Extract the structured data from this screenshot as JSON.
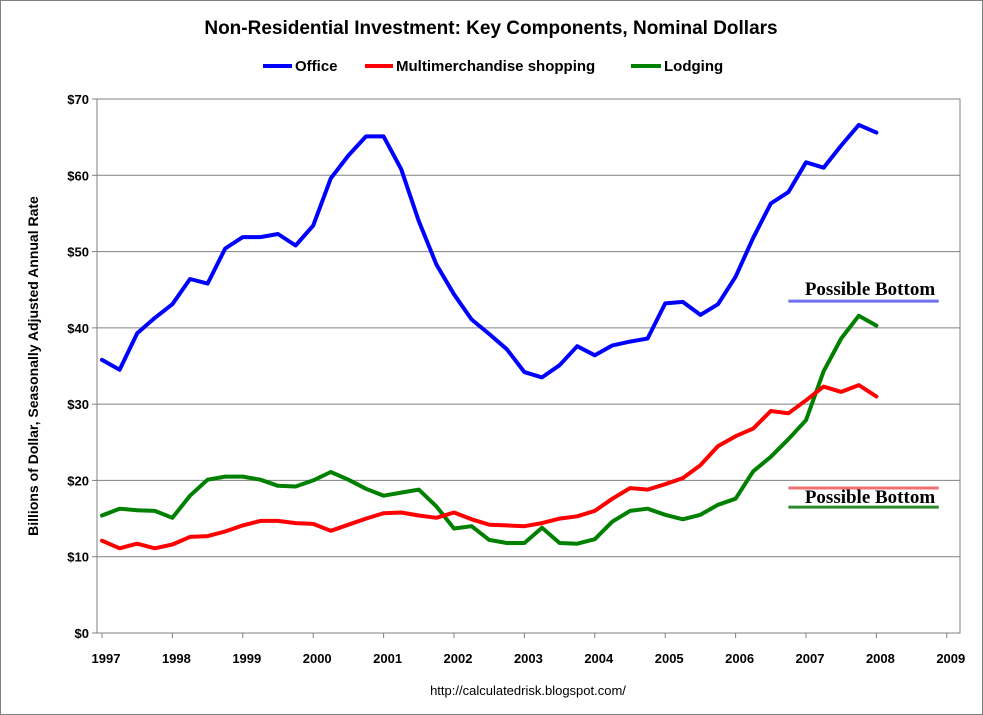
{
  "chart_data": {
    "type": "line",
    "title": "Non-Residential Investment: Key Components, Nominal Dollars",
    "xlabel": "",
    "ylabel": "Billions of Dollar, Seasonally Adjusted Annual Rate",
    "xlim": [
      1997,
      2009
    ],
    "ylim": [
      0,
      70
    ],
    "y_ticks": [
      0,
      10,
      20,
      30,
      40,
      50,
      60,
      70
    ],
    "y_tick_labels": [
      "$0",
      "$10",
      "$20",
      "$30",
      "$40",
      "$50",
      "$60",
      "$70"
    ],
    "x_ticks": [
      1997,
      1998,
      1999,
      2000,
      2001,
      2002,
      2003,
      2004,
      2005,
      2006,
      2007,
      2008,
      2009
    ],
    "x_tick_labels": [
      "1997",
      "1998",
      "1999",
      "2000",
      "2001",
      "2002",
      "2003",
      "2004",
      "2005",
      "2006",
      "2007",
      "2008",
      "2009"
    ],
    "grid": true,
    "legend_position": "top-center",
    "x": [
      1997.0,
      1997.25,
      1997.5,
      1997.75,
      1998.0,
      1998.25,
      1998.5,
      1998.75,
      1999.0,
      1999.25,
      1999.5,
      1999.75,
      2000.0,
      2000.25,
      2000.5,
      2000.75,
      2001.0,
      2001.25,
      2001.5,
      2001.75,
      2002.0,
      2002.25,
      2002.5,
      2002.75,
      2003.0,
      2003.25,
      2003.5,
      2003.75,
      2004.0,
      2004.25,
      2004.5,
      2004.75,
      2005.0,
      2005.25,
      2005.5,
      2005.75,
      2006.0,
      2006.25,
      2006.5,
      2006.75,
      2007.0,
      2007.25,
      2007.5,
      2007.75,
      2008.0
    ],
    "series": [
      {
        "name": "Office",
        "color": "#0000ff",
        "values": [
          35.8,
          34.5,
          39.3,
          41.3,
          43.1,
          46.4,
          45.8,
          50.4,
          51.9,
          51.9,
          52.3,
          50.8,
          53.4,
          59.6,
          62.6,
          65.1,
          65.1,
          60.8,
          54.0,
          48.3,
          44.4,
          41.1,
          39.2,
          37.2,
          34.2,
          33.5,
          35.1,
          37.6,
          36.4,
          37.7,
          38.2,
          38.6,
          43.2,
          43.4,
          41.7,
          43.1,
          46.7,
          51.8,
          56.3,
          57.8,
          61.7,
          61.0,
          63.9,
          66.6,
          65.6
        ]
      },
      {
        "name": "Multimerchandise shopping",
        "color": "#ff0000",
        "values": [
          12.1,
          11.1,
          11.7,
          11.1,
          11.6,
          12.6,
          12.7,
          13.3,
          14.1,
          14.7,
          14.7,
          14.4,
          14.3,
          13.4,
          14.2,
          15.0,
          15.7,
          15.8,
          15.4,
          15.1,
          15.8,
          14.9,
          14.2,
          14.1,
          14.0,
          14.4,
          15.0,
          15.3,
          16.0,
          17.6,
          19.0,
          18.8,
          19.5,
          20.3,
          22.0,
          24.5,
          25.8,
          26.8,
          29.1,
          28.8,
          30.5,
          32.3,
          31.6,
          32.5,
          31.0
        ]
      },
      {
        "name": "Lodging",
        "color": "#008000",
        "values": [
          15.4,
          16.3,
          16.1,
          16.0,
          15.1,
          18.0,
          20.1,
          20.5,
          20.5,
          20.1,
          19.3,
          19.2,
          20.0,
          21.1,
          20.1,
          18.9,
          18.0,
          18.4,
          18.8,
          16.6,
          13.7,
          14.0,
          12.2,
          11.8,
          11.8,
          13.8,
          11.8,
          11.7,
          12.3,
          14.6,
          16.0,
          16.3,
          15.5,
          14.9,
          15.5,
          16.8,
          17.6,
          21.2,
          23.1,
          25.4,
          27.9,
          34.3,
          38.6,
          41.6,
          40.3
        ]
      }
    ],
    "annotations": [
      {
        "text": "Possible Bottom",
        "line_color": "#7070ee",
        "line_value": 43.5,
        "line_x": [
          2006.75,
          2009.0
        ]
      },
      {
        "text": "Possible Bottom",
        "line_color": "#ee7070",
        "line_value": 19.0,
        "line_x": [
          2006.75,
          2009.0
        ]
      },
      {
        "text": "Possible Bottom",
        "line_color": "#2e8b2e",
        "line_value": 16.5,
        "line_x": [
          2006.75,
          2009.0
        ]
      }
    ],
    "source": "http://calculatedrisk.blogspot.com/"
  }
}
